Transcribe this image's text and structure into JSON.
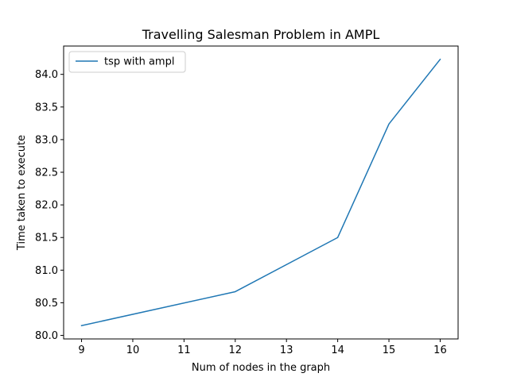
{
  "chart_data": {
    "type": "line",
    "title": "Travelling Salesman Problem in AMPL",
    "xlabel": "Num of nodes in the graph",
    "ylabel": "Time taken to execute",
    "x": [
      9,
      12,
      14,
      15,
      16
    ],
    "series": [
      {
        "name": "tsp with ampl",
        "values": [
          80.15,
          80.67,
          81.5,
          83.24,
          84.23
        ],
        "color": "#1f77b4"
      }
    ],
    "xticks": [
      9,
      10,
      11,
      12,
      13,
      14,
      15,
      16
    ],
    "xtick_labels": [
      "9",
      "10",
      "11",
      "12",
      "13",
      "14",
      "15",
      "16"
    ],
    "yticks": [
      80.0,
      80.5,
      81.0,
      81.5,
      82.0,
      82.5,
      83.0,
      83.5,
      84.0
    ],
    "ytick_labels": [
      "80.0",
      "80.5",
      "81.0",
      "81.5",
      "82.0",
      "82.5",
      "83.0",
      "83.5",
      "84.0"
    ],
    "xlim": [
      8.65,
      16.35
    ],
    "ylim": [
      79.946,
      84.434
    ],
    "grid": false,
    "legend_position": "upper left"
  }
}
